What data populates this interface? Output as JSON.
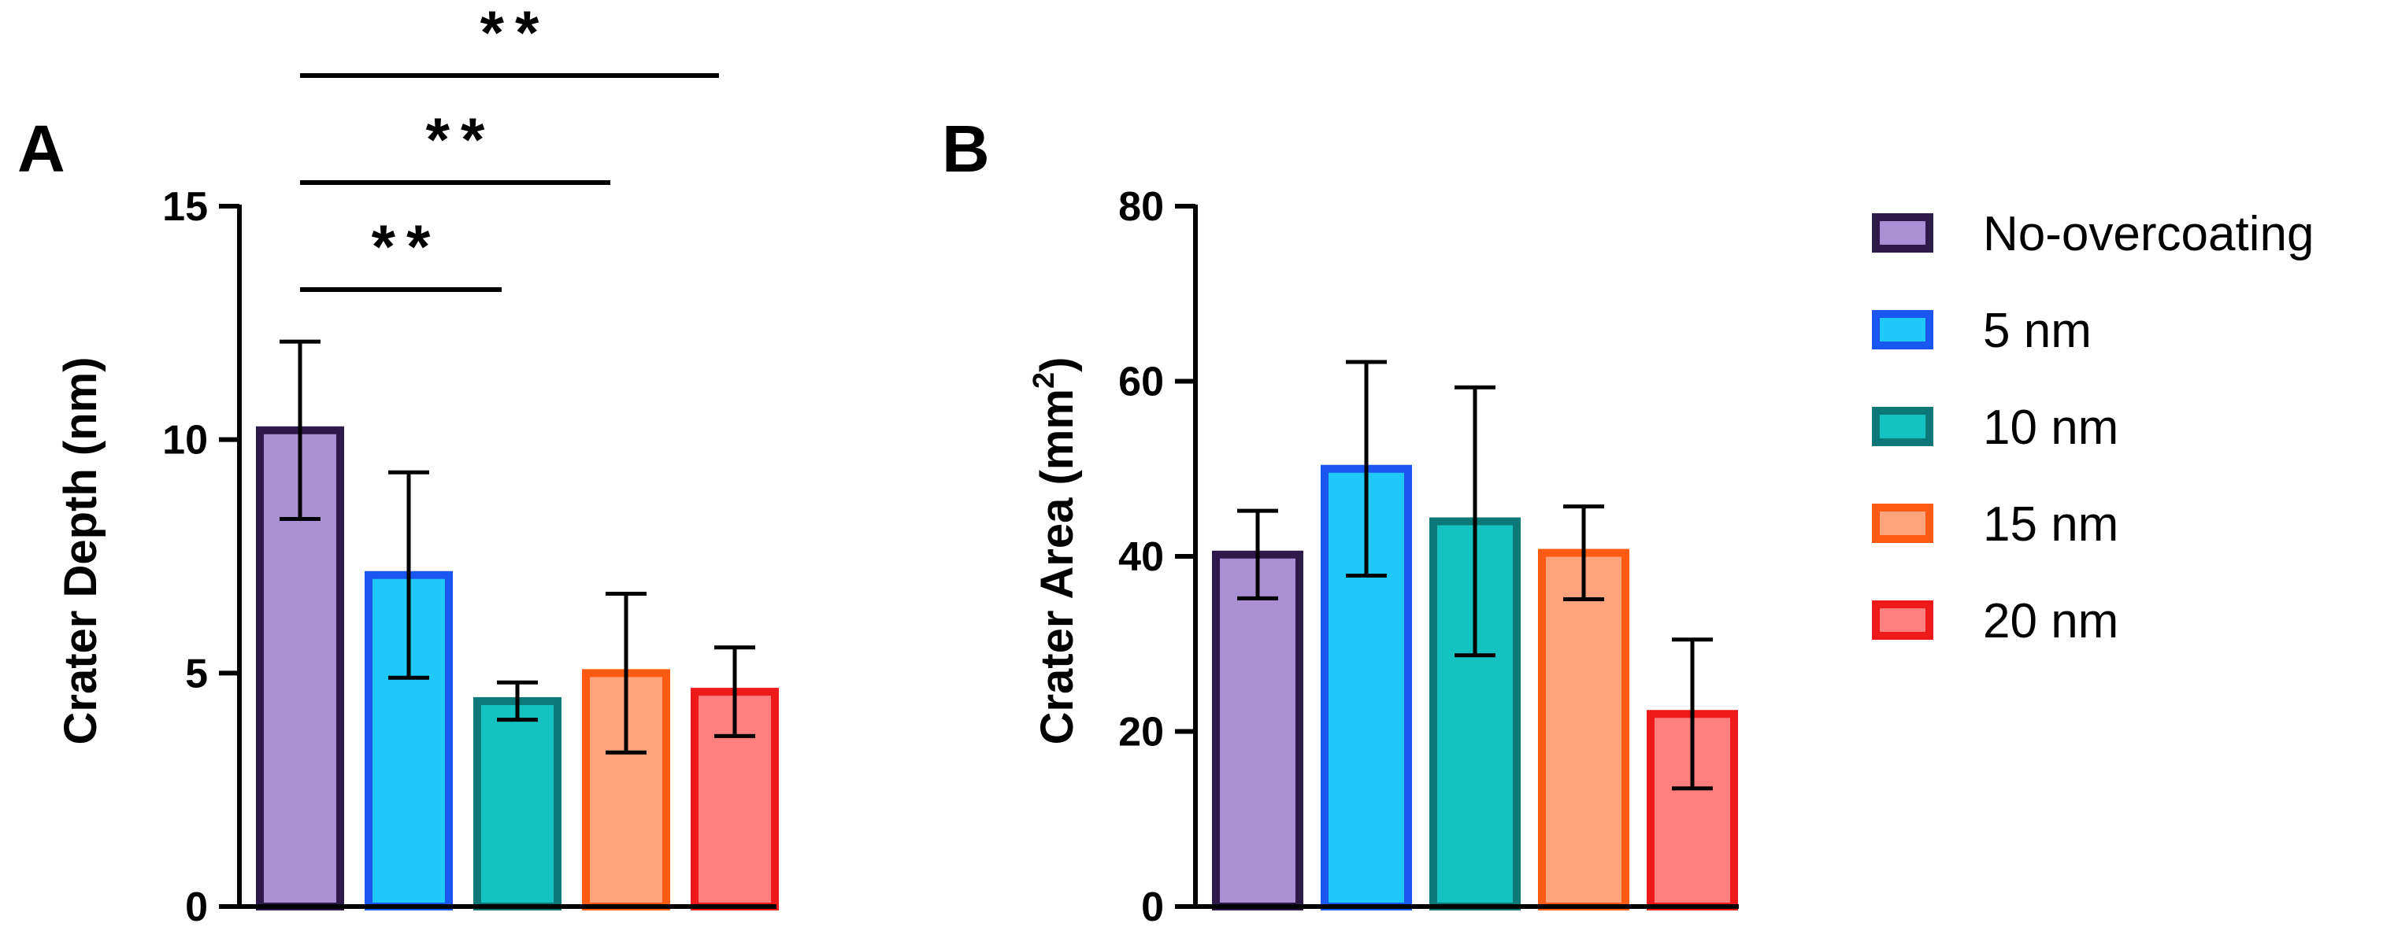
{
  "figure": {
    "legend": [
      {
        "label": "No-overcoating",
        "fill": "#ab8fd4",
        "stroke": "#2e1a4a"
      },
      {
        "label": "5 nm",
        "fill": "#1ec8f8",
        "stroke": "#1a56f0"
      },
      {
        "label": "10 nm",
        "fill": "#14c2c2",
        "stroke": "#0c7878"
      },
      {
        "label": "15 nm",
        "fill": "#ffa37c",
        "stroke": "#ff5a12"
      },
      {
        "label": "20 nm",
        "fill": "#ff7f7f",
        "stroke": "#ee1a1a"
      }
    ]
  },
  "chart_data": [
    {
      "type": "bar",
      "panel": "A",
      "ylabel": "Crater Depth (nm)",
      "ylim": [
        0,
        15
      ],
      "yticks": [
        0,
        5,
        10,
        15
      ],
      "categories": [
        "No-overcoating",
        "5 nm",
        "10 nm",
        "15 nm",
        "20 nm"
      ],
      "values": [
        10.2,
        7.1,
        4.4,
        5.0,
        4.6
      ],
      "errors": [
        1.9,
        2.2,
        0.4,
        1.7,
        0.95
      ],
      "significance": [
        {
          "from": 0,
          "to": 2,
          "label": "**"
        },
        {
          "from": 0,
          "to": 3,
          "label": "**"
        },
        {
          "from": 0,
          "to": 4,
          "label": "**"
        }
      ]
    },
    {
      "type": "bar",
      "panel": "B",
      "ylabel": "Crater Area (mm",
      "ylabel_sup": "2",
      "ylabel_close": ")",
      "ylim": [
        0,
        80
      ],
      "yticks": [
        0,
        20,
        40,
        60,
        80
      ],
      "categories": [
        "No-overcoating",
        "5 nm",
        "10 nm",
        "15 nm",
        "20 nm"
      ],
      "values": [
        40.2,
        50.0,
        44.0,
        40.4,
        22.0
      ],
      "errors": [
        5.0,
        12.2,
        15.3,
        5.3,
        8.5
      ],
      "significance": []
    }
  ]
}
